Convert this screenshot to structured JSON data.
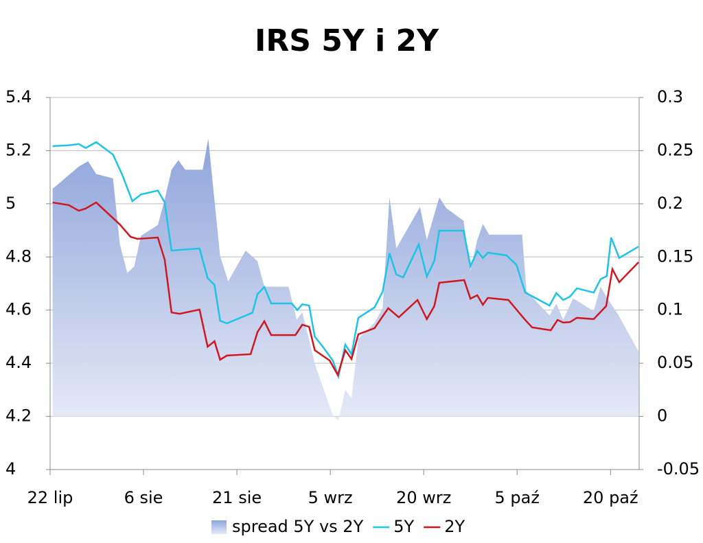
{
  "chart_data": {
    "type": "line",
    "title": "IRS 5Y i 2Y",
    "xlim": [
      0,
      94.6
    ],
    "xticks": [
      {
        "value": 0,
        "label": "22 lip"
      },
      {
        "value": 15,
        "label": "6 sie"
      },
      {
        "value": 30,
        "label": "21 sie"
      },
      {
        "value": 45,
        "label": "5 wrz"
      },
      {
        "value": 60,
        "label": "20 wrz"
      },
      {
        "value": 75,
        "label": "5 paź"
      },
      {
        "value": 90,
        "label": "20 paź"
      }
    ],
    "ylim": [
      4,
      5.4
    ],
    "yticks": [
      4,
      4.2,
      4.4,
      4.6,
      4.8,
      5,
      5.2,
      5.4
    ],
    "y2lim": [
      -0.05,
      0.3
    ],
    "y2ticks": [
      -0.05,
      0,
      0.05,
      0.1,
      0.15,
      0.2,
      0.25,
      0.3
    ],
    "grid": true,
    "legend": "bottom",
    "series": [
      {
        "name": "spread 5Y vs 2Y",
        "type": "area",
        "axis": "y2",
        "color": "#9aaedf",
        "x": [
          0.4,
          4.6,
          6.1,
          7.4,
          10.1,
          11.2,
          12.4,
          13.5,
          14.6,
          17.3,
          18.4,
          19.5,
          20.6,
          21.7,
          24.5,
          25.4,
          27.3,
          28.6,
          31.4,
          33.3,
          34.4,
          38.3,
          39.6,
          40.5,
          42.7,
          45.4,
          46.3,
          47.4,
          48.4,
          49.5,
          52.1,
          53.4,
          54.5,
          55.6,
          59.4,
          60.5,
          62.5,
          63.6,
          66.4,
          67.5,
          68.6,
          69.5,
          70.5,
          75.8,
          76.5,
          80.2,
          81.3,
          82.4,
          84.0,
          87.3,
          88.4,
          89.4,
          91.2,
          94.5
        ],
        "values": [
          0.214,
          0.235,
          0.24,
          0.228,
          0.224,
          0.162,
          0.135,
          0.141,
          0.17,
          0.18,
          0.204,
          0.232,
          0.241,
          0.232,
          0.232,
          0.261,
          0.151,
          0.127,
          0.156,
          0.146,
          0.122,
          0.122,
          0.091,
          0.098,
          0.046,
          0.001,
          -0.004,
          0.025,
          0.017,
          0.073,
          0.088,
          0.102,
          0.206,
          0.158,
          0.197,
          0.166,
          0.206,
          0.196,
          0.184,
          0.137,
          0.166,
          0.181,
          0.171,
          0.171,
          0.118,
          0.095,
          0.106,
          0.091,
          0.111,
          0.099,
          0.122,
          0.112,
          0.096,
          0.061
        ]
      },
      {
        "name": "5Y",
        "color": "#1ec3e6",
        "x": [
          0.4,
          3.0,
          4.6,
          5.7,
          7.4,
          10.1,
          11.6,
          13.2,
          14.6,
          17.3,
          18.4,
          19.5,
          24.0,
          25.3,
          26.4,
          27.3,
          28.4,
          32.5,
          33.3,
          34.4,
          35.5,
          38.8,
          39.7,
          40.5,
          41.6,
          42.5,
          43.8,
          45.4,
          46.3,
          47.4,
          48.4,
          49.5,
          52.1,
          53.4,
          54.5,
          55.6,
          56.7,
          59.2,
          60.5,
          61.7,
          62.5,
          66.4,
          67.5,
          68.6,
          69.5,
          70.3,
          73.3,
          74.9,
          76.3,
          80.2,
          81.3,
          82.4,
          83.5,
          84.6,
          87.3,
          88.4,
          89.4,
          90.1,
          91.4,
          94.5
        ],
        "values": [
          5.217,
          5.22,
          5.225,
          5.21,
          5.232,
          5.185,
          5.108,
          5.01,
          5.035,
          5.05,
          5.005,
          4.824,
          4.832,
          4.72,
          4.695,
          4.56,
          4.55,
          4.59,
          4.66,
          4.687,
          4.625,
          4.625,
          4.6,
          4.622,
          4.617,
          4.5,
          4.462,
          4.41,
          4.35,
          4.47,
          4.434,
          4.571,
          4.61,
          4.669,
          4.814,
          4.734,
          4.723,
          4.847,
          4.726,
          4.785,
          4.899,
          4.899,
          4.765,
          4.822,
          4.796,
          4.816,
          4.806,
          4.77,
          4.666,
          4.617,
          4.664,
          4.638,
          4.651,
          4.682,
          4.666,
          4.716,
          4.728,
          4.873,
          4.796,
          4.839
        ]
      },
      {
        "name": "2Y",
        "color": "#d0161e",
        "x": [
          0.4,
          3.0,
          4.6,
          5.7,
          7.4,
          11.2,
          12.9,
          14.0,
          17.3,
          18.4,
          19.5,
          20.8,
          24.0,
          25.3,
          26.4,
          27.3,
          28.4,
          32.2,
          33.3,
          34.4,
          35.5,
          39.4,
          40.5,
          41.6,
          42.5,
          44.9,
          46.2,
          47.4,
          48.4,
          49.5,
          52.1,
          54.3,
          56.0,
          59.0,
          60.5,
          61.7,
          62.5,
          66.5,
          67.5,
          68.6,
          69.5,
          70.3,
          73.6,
          76.3,
          77.4,
          80.4,
          81.5,
          82.4,
          83.5,
          84.6,
          87.3,
          89.3,
          90.3,
          91.4,
          94.5
        ],
        "values": [
          5.005,
          4.995,
          4.974,
          4.982,
          5.005,
          4.922,
          4.876,
          4.868,
          4.873,
          4.79,
          4.591,
          4.586,
          4.602,
          4.462,
          4.483,
          4.413,
          4.429,
          4.434,
          4.517,
          4.558,
          4.506,
          4.506,
          4.545,
          4.537,
          4.449,
          4.41,
          4.356,
          4.449,
          4.416,
          4.509,
          4.532,
          4.607,
          4.573,
          4.638,
          4.566,
          4.615,
          4.703,
          4.713,
          4.643,
          4.656,
          4.62,
          4.646,
          4.638,
          4.563,
          4.535,
          4.524,
          4.563,
          4.553,
          4.555,
          4.571,
          4.566,
          4.615,
          4.754,
          4.705,
          4.78
        ]
      }
    ]
  }
}
